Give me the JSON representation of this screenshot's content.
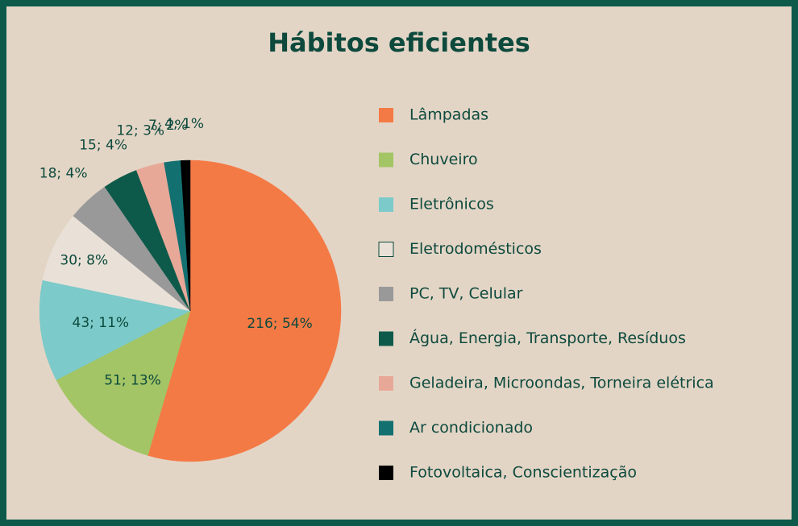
{
  "chart_data": {
    "type": "pie",
    "title": "Hábitos eficientes",
    "categories": [
      "Lâmpadas",
      "Chuveiro",
      "Eletrônicos",
      "Eletrodomésticos",
      "PC, TV, Celular",
      "Água, Energia, Transporte, Resíduos",
      "Geladeira, Microondas, Torneira elétrica",
      "Ar condicionado",
      "Fotovoltaica, Conscientização"
    ],
    "values": [
      216,
      51,
      43,
      30,
      18,
      15,
      12,
      7,
      4
    ],
    "value_labels": [
      "216; 54%",
      "51; 13%",
      "43; 11%",
      "30; 8%",
      "18; 4%",
      "15; 4%",
      "12; 3%",
      "7; 2%",
      "4; 1%"
    ],
    "colors": [
      "#f47a45",
      "#a3c565",
      "#7ccac9",
      "#e9e1d7",
      "#999999",
      "#0d5a4a",
      "#e8a898",
      "#137070",
      "#000000"
    ],
    "legend": "right"
  }
}
